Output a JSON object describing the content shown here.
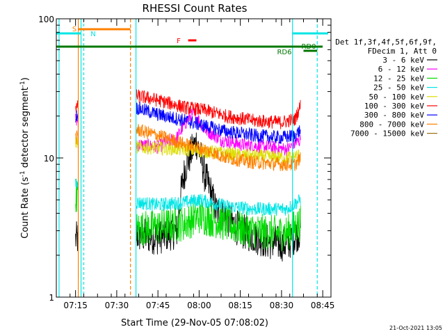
{
  "chart_data": {
    "type": "line",
    "title": "RHESSI Count Rates",
    "xlabel": "Start Time (29-Nov-05 07:08:02)",
    "ylabel": "Count Rate (s⁻¹ detector segment⁻¹)",
    "ylabel_main": "Count Rate (s",
    "ylabel_mid": " detector segment",
    "ylabel_end": ")",
    "ylabel_sup": "-1",
    "yscale": "log",
    "ylim": [
      1,
      100
    ],
    "xlim": [
      "07:08",
      "08:48"
    ],
    "y_ticks": [
      {
        "value": 1,
        "label": "1"
      },
      {
        "value": 10,
        "label": "10"
      },
      {
        "value": 100,
        "label": "100"
      }
    ],
    "x_ticks": [
      {
        "time": "07:15",
        "label": "07:15"
      },
      {
        "time": "07:30",
        "label": "07:30"
      },
      {
        "time": "07:45",
        "label": "07:45"
      },
      {
        "time": "08:00",
        "label": "08:00"
      },
      {
        "time": "08:15",
        "label": "08:15"
      },
      {
        "time": "08:30",
        "label": "08:30"
      },
      {
        "time": "08:45",
        "label": "08:45"
      }
    ],
    "legend": {
      "header": [
        "Det 1f,3f,4f,5f,6f,9f,",
        "FDecim 1, Att 0"
      ],
      "placement": "right"
    },
    "series": [
      {
        "name": "3 - 6 keV",
        "color": "#000000",
        "points": [
          [
            "07:15",
            2.6
          ],
          [
            "07:37",
            2.8
          ],
          [
            "07:45",
            2.7
          ],
          [
            "07:52",
            3.0
          ],
          [
            "07:55",
            8.5
          ],
          [
            "07:59",
            13.0
          ],
          [
            "08:02",
            7.5
          ],
          [
            "08:06",
            4.2
          ],
          [
            "08:15",
            3.0
          ],
          [
            "08:25",
            2.5
          ],
          [
            "08:32",
            2.4
          ],
          [
            "08:37",
            3.0
          ]
        ]
      },
      {
        "name": "6 - 12 keV",
        "color": "#ff00ff",
        "points": [
          [
            "07:15",
            19
          ],
          [
            "07:37",
            12.5
          ],
          [
            "07:45",
            12.0
          ],
          [
            "07:52",
            14
          ],
          [
            "07:56",
            19
          ],
          [
            "07:58",
            21
          ],
          [
            "08:02",
            16
          ],
          [
            "08:08",
            13.5
          ],
          [
            "08:15",
            12.5
          ],
          [
            "08:25",
            12.0
          ],
          [
            "08:32",
            11.5
          ],
          [
            "08:37",
            13.5
          ]
        ]
      },
      {
        "name": "12 - 25 keV",
        "color": "#00dd00",
        "points": [
          [
            "07:15",
            5.5
          ],
          [
            "07:37",
            3.1
          ],
          [
            "07:45",
            3.2
          ],
          [
            "07:55",
            3.4
          ],
          [
            "08:00",
            3.8
          ],
          [
            "08:05",
            3.6
          ],
          [
            "08:15",
            3.1
          ],
          [
            "08:25",
            2.9
          ],
          [
            "08:32",
            2.9
          ],
          [
            "08:37",
            3.4
          ]
        ]
      },
      {
        "name": "25 - 50 keV",
        "color": "#00e5e5",
        "points": [
          [
            "07:15",
            6.5
          ],
          [
            "07:37",
            4.8
          ],
          [
            "07:45",
            4.6
          ],
          [
            "07:55",
            4.8
          ],
          [
            "08:00",
            5.0
          ],
          [
            "08:10",
            4.5
          ],
          [
            "08:20",
            4.3
          ],
          [
            "08:32",
            4.3
          ],
          [
            "08:37",
            5.0
          ]
        ]
      },
      {
        "name": "50 - 100 keV",
        "color": "#dddd00",
        "points": [
          [
            "07:15",
            13
          ],
          [
            "07:37",
            12.0
          ],
          [
            "07:45",
            11.8
          ],
          [
            "07:55",
            11.5
          ],
          [
            "08:05",
            11.0
          ],
          [
            "08:15",
            10.5
          ],
          [
            "08:25",
            10.2
          ],
          [
            "08:32",
            10.0
          ],
          [
            "08:37",
            10.5
          ]
        ]
      },
      {
        "name": "100 - 300 keV",
        "color": "#ff0000",
        "points": [
          [
            "07:15",
            23
          ],
          [
            "07:37",
            28
          ],
          [
            "07:45",
            26
          ],
          [
            "07:55",
            23
          ],
          [
            "08:02",
            22
          ],
          [
            "08:10",
            20
          ],
          [
            "08:20",
            18.5
          ],
          [
            "08:30",
            18.0
          ],
          [
            "08:35",
            19.0
          ],
          [
            "08:37",
            24
          ]
        ]
      },
      {
        "name": "300 - 800 keV",
        "color": "#0000ff",
        "points": [
          [
            "07:15",
            20
          ],
          [
            "07:37",
            23
          ],
          [
            "07:45",
            20.5
          ],
          [
            "07:55",
            18.5
          ],
          [
            "08:02",
            17
          ],
          [
            "08:10",
            15.5
          ],
          [
            "08:20",
            14.5
          ],
          [
            "08:30",
            14.0
          ],
          [
            "08:35",
            14.5
          ],
          [
            "08:37",
            16
          ]
        ]
      },
      {
        "name": "800 - 7000 keV",
        "color": "#ff8000",
        "points": [
          [
            "07:15",
            14
          ],
          [
            "07:37",
            16
          ],
          [
            "07:45",
            14.5
          ],
          [
            "07:55",
            12.5
          ],
          [
            "08:02",
            11.5
          ],
          [
            "08:10",
            10.0
          ],
          [
            "08:20",
            9.3
          ],
          [
            "08:30",
            9.0
          ],
          [
            "08:35",
            9.0
          ],
          [
            "08:37",
            10.0
          ]
        ]
      },
      {
        "name": "7000 - 15000 keV",
        "color": "#9a7010",
        "points": []
      }
    ],
    "annotations": [
      {
        "label": "S",
        "color": "#ff8000"
      },
      {
        "label": "N",
        "color": "#00e5e5"
      },
      {
        "label": "F",
        "color": "#ff0000"
      },
      {
        "label": "RD0",
        "color": "#007700"
      },
      {
        "label": "RD6",
        "color": "#007700"
      }
    ],
    "footer_timestamp": "21-Oct-2021 13:05"
  }
}
